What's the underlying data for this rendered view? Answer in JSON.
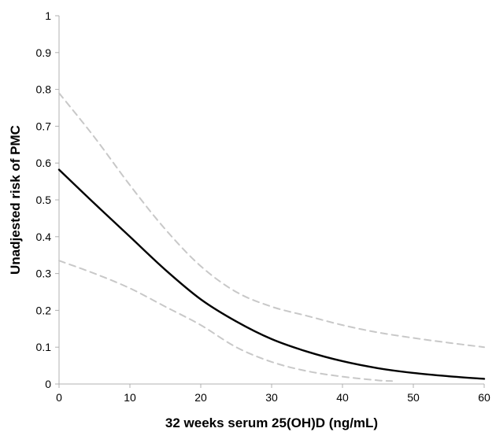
{
  "chart_data": {
    "type": "line",
    "title": "",
    "xlabel": "32 weeks serum 25(OH)D (ng/mL)",
    "ylabel": "Unadjested risk of PMC",
    "xlim": [
      0,
      60
    ],
    "ylim": [
      0,
      1
    ],
    "x_ticks": [
      0,
      10,
      20,
      30,
      40,
      50,
      60
    ],
    "y_ticks": [
      0,
      0.1,
      0.2,
      0.3,
      0.4,
      0.5,
      0.6,
      0.7,
      0.8,
      0.9,
      1
    ],
    "x_tick_labels": [
      "0",
      "10",
      "20",
      "30",
      "40",
      "50",
      "60"
    ],
    "y_tick_labels": [
      "0",
      "0.1",
      "0.2",
      "0.3",
      "0.4",
      "0.5",
      "0.6",
      "0.7",
      "0.8",
      "0.9",
      "1"
    ],
    "grid": false,
    "legend": "none",
    "series": [
      {
        "role": "estimate",
        "style": "solid",
        "color": "#000000",
        "x": [
          0,
          5,
          10,
          15,
          20,
          25,
          30,
          35,
          40,
          45,
          50,
          55,
          60
        ],
        "values": [
          0.582,
          0.49,
          0.4,
          0.31,
          0.23,
          0.17,
          0.122,
          0.088,
          0.062,
          0.043,
          0.03,
          0.021,
          0.014
        ]
      },
      {
        "role": "upper-bound",
        "style": "dashed",
        "color": "#c8c8c8",
        "x": [
          0,
          5,
          10,
          15,
          20,
          25,
          30,
          35,
          40,
          45,
          50,
          55,
          60
        ],
        "values": [
          0.79,
          0.67,
          0.54,
          0.42,
          0.32,
          0.25,
          0.21,
          0.185,
          0.16,
          0.14,
          0.125,
          0.112,
          0.1
        ]
      },
      {
        "role": "lower-bound",
        "style": "dashed",
        "color": "#c8c8c8",
        "x": [
          0,
          5,
          10,
          15,
          20,
          25,
          30,
          35,
          40,
          45,
          47
        ],
        "values": [
          0.335,
          0.3,
          0.26,
          0.21,
          0.16,
          0.1,
          0.06,
          0.035,
          0.02,
          0.01,
          0.008
        ]
      }
    ]
  }
}
